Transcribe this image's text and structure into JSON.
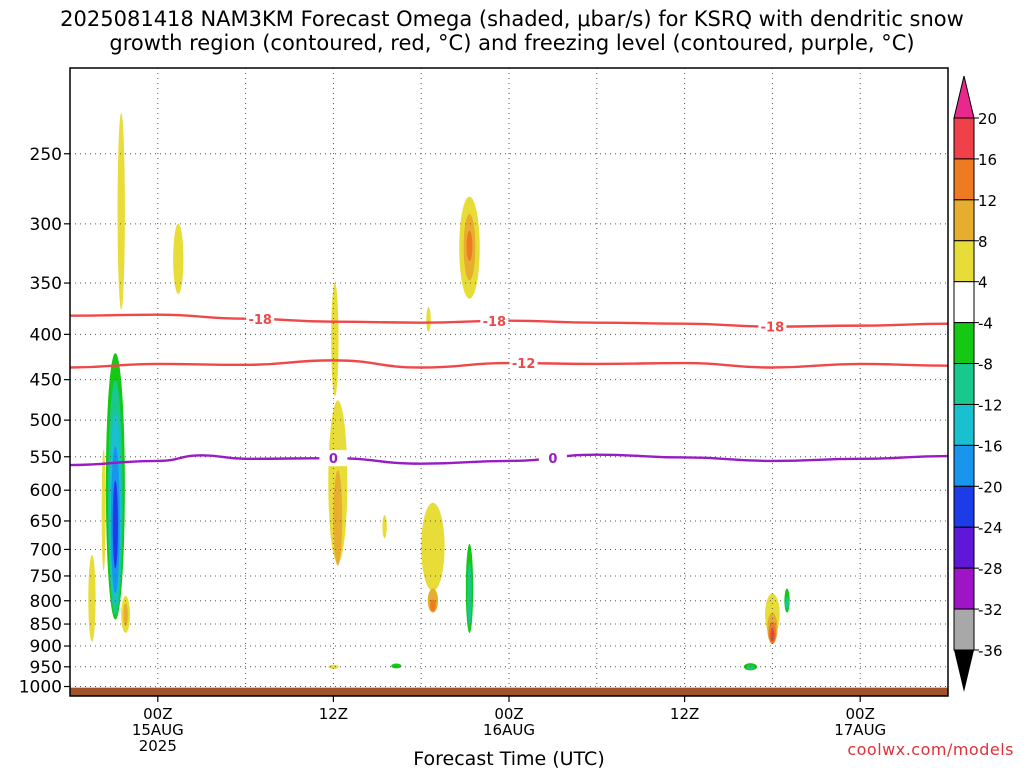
{
  "title": {
    "line1": "2025081418 NAM3KM Forecast Omega (shaded, μbar/s) for KSRQ with dendritic snow",
    "line2": "growth region (contoured, red, °C) and freezing level (contoured, purple, °C)"
  },
  "credit": "coolwx.com/models",
  "chart_data": {
    "type": "heatmap",
    "xlabel": "Forecast Time (UTC)",
    "x_ticks": [
      {
        "hours": 6,
        "lines": [
          "00Z",
          "15AUG",
          "2025"
        ]
      },
      {
        "hours": 18,
        "lines": [
          "12Z"
        ]
      },
      {
        "hours": 30,
        "lines": [
          "00Z",
          "16AUG"
        ]
      },
      {
        "hours": 42,
        "lines": [
          "12Z"
        ]
      },
      {
        "hours": 54,
        "lines": [
          "00Z",
          "17AUG"
        ]
      }
    ],
    "x_grid_hours": [
      6,
      12,
      18,
      24,
      30,
      36,
      42,
      48,
      54
    ],
    "xlim_hours": [
      0,
      60
    ],
    "ylabel": "",
    "y_ticks": [
      250,
      300,
      350,
      400,
      450,
      500,
      550,
      600,
      650,
      700,
      750,
      800,
      850,
      900,
      950,
      1000
    ],
    "ylim_hPa": [
      200,
      1025
    ],
    "colorbar": {
      "labels": [
        20,
        16,
        12,
        8,
        4,
        -4,
        -8,
        -12,
        -16,
        -20,
        -24,
        -28,
        -32,
        -36
      ],
      "bins": [
        {
          "lo": 16,
          "hi": 20,
          "color": "#f0404a"
        },
        {
          "lo": 12,
          "hi": 16,
          "color": "#ee7a22"
        },
        {
          "lo": 8,
          "hi": 12,
          "color": "#e6ad2e"
        },
        {
          "lo": 4,
          "hi": 8,
          "color": "#e8dc38"
        },
        {
          "lo": -4,
          "hi": 4,
          "color": "#ffffff"
        },
        {
          "lo": -8,
          "hi": -4,
          "color": "#14c814"
        },
        {
          "lo": -12,
          "hi": -8,
          "color": "#18c88c"
        },
        {
          "lo": -16,
          "hi": -12,
          "color": "#18c0d0"
        },
        {
          "lo": -20,
          "hi": -16,
          "color": "#1896ee"
        },
        {
          "lo": -24,
          "hi": -20,
          "color": "#1c3ce8"
        },
        {
          "lo": -28,
          "hi": -24,
          "color": "#6018d8"
        },
        {
          "lo": -32,
          "hi": -28,
          "color": "#a014c8"
        },
        {
          "lo": -36,
          "hi": -32,
          "color": "#a8a8a8"
        }
      ],
      "top_arrow_color": "#e8288c",
      "bottom_arrow_color": "#000000"
    },
    "ground_color": "#a0522d",
    "omega_features": [
      {
        "t": 3.1,
        "p": 630,
        "dt": 0.65,
        "dp": 420,
        "v": -8
      },
      {
        "t": 3.1,
        "p": 640,
        "dt": 0.5,
        "dp": 380,
        "v": -12
      },
      {
        "t": 3.1,
        "p": 650,
        "dt": 0.4,
        "dp": 320,
        "v": -16
      },
      {
        "t": 3.1,
        "p": 660,
        "dt": 0.3,
        "dp": 250,
        "v": -20
      },
      {
        "t": 3.1,
        "p": 660,
        "dt": 0.18,
        "dp": 150,
        "v": -24
      },
      {
        "t": 3.5,
        "p": 300,
        "dt": 0.25,
        "dp": 150,
        "v": 4
      },
      {
        "t": 1.5,
        "p": 800,
        "dt": 0.25,
        "dp": 180,
        "v": 4
      },
      {
        "t": 3.8,
        "p": 830,
        "dt": 0.3,
        "dp": 80,
        "v": 4
      },
      {
        "t": 3.8,
        "p": 830,
        "dt": 0.15,
        "dp": 50,
        "v": 8
      },
      {
        "t": 2.3,
        "p": 640,
        "dt": 0.12,
        "dp": 200,
        "v": 4
      },
      {
        "t": 7.4,
        "p": 330,
        "dt": 0.35,
        "dp": 60,
        "v": 4
      },
      {
        "t": 9.2,
        "p": 510,
        "dt": 0.3,
        "dp": 25,
        "v": -4
      },
      {
        "t": 18.3,
        "p": 600,
        "dt": 0.65,
        "dp": 250,
        "v": 4
      },
      {
        "t": 18.1,
        "p": 410,
        "dt": 0.25,
        "dp": 120,
        "v": 4
      },
      {
        "t": 18.3,
        "p": 650,
        "dt": 0.3,
        "dp": 160,
        "v": 8
      },
      {
        "t": 18.0,
        "p": 950,
        "dt": 0.35,
        "dp": 10,
        "v": 4
      },
      {
        "t": 19.0,
        "p": 335,
        "dt": 0.12,
        "dp": 40,
        "v": -4
      },
      {
        "t": 21.5,
        "p": 660,
        "dt": 0.15,
        "dp": 40,
        "v": 4
      },
      {
        "t": 22.3,
        "p": 948,
        "dt": 0.6,
        "dp": 20,
        "v": -4
      },
      {
        "t": 22.3,
        "p": 948,
        "dt": 0.35,
        "dp": 12,
        "v": -8
      },
      {
        "t": 24.8,
        "p": 700,
        "dt": 0.8,
        "dp": 160,
        "v": 4
      },
      {
        "t": 24.8,
        "p": 800,
        "dt": 0.35,
        "dp": 50,
        "v": 8
      },
      {
        "t": 24.8,
        "p": 810,
        "dt": 0.2,
        "dp": 25,
        "v": 12
      },
      {
        "t": 24.5,
        "p": 385,
        "dt": 0.15,
        "dp": 25,
        "v": 4
      },
      {
        "t": 25.8,
        "p": 962,
        "dt": 0.25,
        "dp": 5,
        "v": -4
      },
      {
        "t": 27.0,
        "p": 255,
        "dt": 0.25,
        "dp": 100,
        "v": -4
      },
      {
        "t": 27.3,
        "p": 322,
        "dt": 0.7,
        "dp": 85,
        "v": 4
      },
      {
        "t": 27.3,
        "p": 320,
        "dt": 0.4,
        "dp": 55,
        "v": 8
      },
      {
        "t": 27.3,
        "p": 318,
        "dt": 0.2,
        "dp": 25,
        "v": 12
      },
      {
        "t": 27.3,
        "p": 760,
        "dt": 0.35,
        "dp": 230,
        "v": -4
      },
      {
        "t": 27.3,
        "p": 780,
        "dt": 0.25,
        "dp": 180,
        "v": -8
      },
      {
        "t": 27.3,
        "p": 790,
        "dt": 0.15,
        "dp": 130,
        "v": -12
      },
      {
        "t": 46.5,
        "p": 945,
        "dt": 0.7,
        "dp": 30,
        "v": -4
      },
      {
        "t": 46.5,
        "p": 950,
        "dt": 0.45,
        "dp": 18,
        "v": -8
      },
      {
        "t": 46.5,
        "p": 952,
        "dt": 0.25,
        "dp": 8,
        "v": -12
      },
      {
        "t": 48.0,
        "p": 830,
        "dt": 0.5,
        "dp": 90,
        "v": 4
      },
      {
        "t": 48.0,
        "p": 860,
        "dt": 0.35,
        "dp": 70,
        "v": 8
      },
      {
        "t": 48.0,
        "p": 870,
        "dt": 0.25,
        "dp": 50,
        "v": 12
      },
      {
        "t": 48.0,
        "p": 875,
        "dt": 0.12,
        "dp": 30,
        "v": 16
      },
      {
        "t": 49.0,
        "p": 795,
        "dt": 0.3,
        "dp": 80,
        "v": -4
      },
      {
        "t": 49.0,
        "p": 800,
        "dt": 0.18,
        "dp": 50,
        "v": -8
      },
      {
        "t": 49.0,
        "p": 805,
        "dt": 0.1,
        "dp": 25,
        "v": -12
      },
      {
        "t": 49.0,
        "p": 960,
        "dt": 0.08,
        "dp": 4,
        "v": -4
      }
    ],
    "contours": [
      {
        "label": "-18",
        "color": "#f04848",
        "points": [
          [
            0,
            381
          ],
          [
            6,
            380
          ],
          [
            12,
            384
          ],
          [
            18,
            387
          ],
          [
            24,
            388
          ],
          [
            30,
            386
          ],
          [
            36,
            388
          ],
          [
            42,
            389
          ],
          [
            48,
            392
          ],
          [
            54,
            391
          ],
          [
            60,
            389
          ]
        ],
        "label_hours": [
          13,
          29,
          48
        ]
      },
      {
        "label": "-12",
        "color": "#f04848",
        "points": [
          [
            0,
            436
          ],
          [
            6,
            432
          ],
          [
            12,
            433
          ],
          [
            18,
            428
          ],
          [
            24,
            436
          ],
          [
            30,
            431
          ],
          [
            36,
            432
          ],
          [
            42,
            431
          ],
          [
            48,
            436
          ],
          [
            54,
            432
          ],
          [
            60,
            434
          ]
        ],
        "label_hours": [
          31
        ]
      },
      {
        "label": "0",
        "color": "#9a1bc4",
        "points": [
          [
            0,
            562
          ],
          [
            6,
            556
          ],
          [
            9,
            548
          ],
          [
            12,
            553
          ],
          [
            18,
            552
          ],
          [
            24,
            560
          ],
          [
            30,
            556
          ],
          [
            36,
            547
          ],
          [
            42,
            551
          ],
          [
            48,
            556
          ],
          [
            54,
            553
          ],
          [
            60,
            549
          ]
        ],
        "label_hours": [
          18,
          33
        ]
      }
    ]
  }
}
